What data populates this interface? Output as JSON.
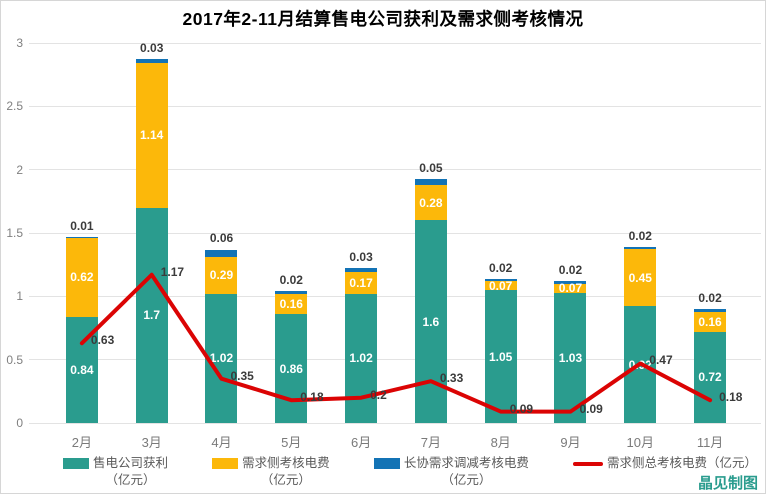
{
  "title": "2017年2-11月结算售电公司获利及需求侧考核情况",
  "watermark": "晶见制图",
  "chart_data": {
    "type": "bar",
    "subtype": "stacked-bars-with-line-overlay",
    "title": "2017年2-11月结算售电公司获利及需求侧考核情况",
    "categories": [
      "2月",
      "3月",
      "4月",
      "5月",
      "6月",
      "7月",
      "8月",
      "9月",
      "10月",
      "11月"
    ],
    "series": [
      {
        "name": "售电公司获利（亿元）",
        "type": "bar",
        "color": "#2A9C8E",
        "values": [
          0.84,
          1.7,
          1.02,
          0.86,
          1.02,
          1.6,
          1.05,
          1.03,
          0.92,
          0.72
        ]
      },
      {
        "name": "需求侧考核电费（亿元）",
        "type": "bar",
        "color": "#FCB80A",
        "values": [
          0.62,
          1.14,
          0.29,
          0.16,
          0.17,
          0.28,
          0.07,
          0.07,
          0.45,
          0.16
        ]
      },
      {
        "name": "长协需求调减考核电费（亿元）",
        "type": "bar",
        "color": "#1373B5",
        "values": [
          0.01,
          0.03,
          0.06,
          0.02,
          0.03,
          0.05,
          0.02,
          0.02,
          0.02,
          0.02
        ]
      },
      {
        "name": "需求侧总考核电费（亿元）",
        "type": "line",
        "color": "#DB0404",
        "values": [
          0.63,
          1.17,
          0.35,
          0.18,
          0.2,
          0.33,
          0.09,
          0.09,
          0.47,
          0.18
        ]
      }
    ],
    "xlabel": "",
    "ylabel": "",
    "ylim": [
      0,
      3
    ],
    "ytick_step": 0.5,
    "yticks": [
      "0",
      "0.5",
      "1",
      "1.5",
      "2",
      "2.5",
      "3"
    ],
    "grid": true,
    "legend_position": "bottom"
  },
  "legend": {
    "items": [
      {
        "label": "售电公司获利",
        "unit": "（亿元）",
        "color": "#2A9C8E",
        "shape": "rect"
      },
      {
        "label": "需求侧考核电费",
        "unit": "（亿元）",
        "color": "#FCB80A",
        "shape": "rect"
      },
      {
        "label": "长协需求调减考核电费",
        "unit": "（亿元）",
        "color": "#1373B5",
        "shape": "rect"
      },
      {
        "label": "需求侧总考核电费（亿元）",
        "unit": "",
        "color": "#DB0404",
        "shape": "line"
      }
    ]
  }
}
